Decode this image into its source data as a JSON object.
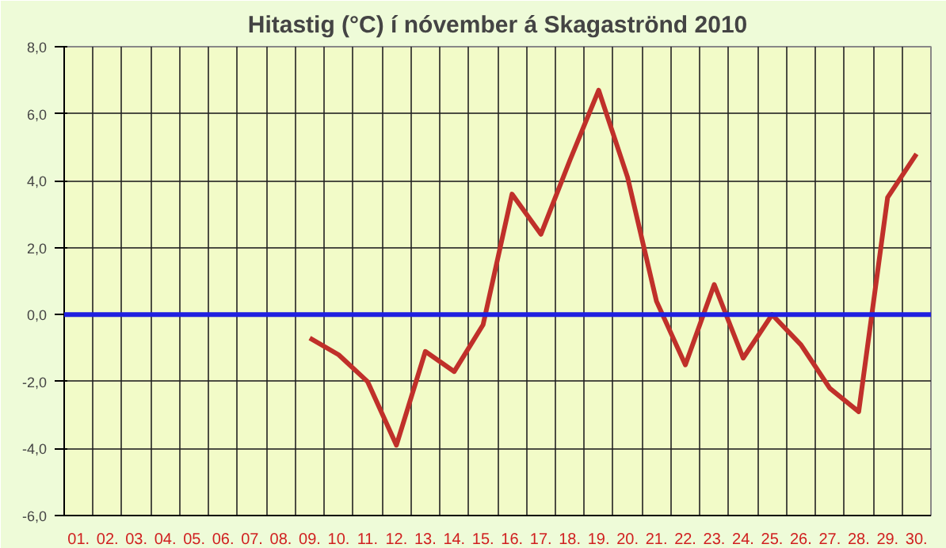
{
  "chart_data": {
    "type": "line",
    "title": "Hitastig (°C) í nóvember á Skagaströnd 2010",
    "categories": [
      "01.",
      "02.",
      "03.",
      "04.",
      "05.",
      "06.",
      "07.",
      "08.",
      "09.",
      "10.",
      "11.",
      "12.",
      "13.",
      "14.",
      "15.",
      "16.",
      "17.",
      "18.",
      "19.",
      "20.",
      "21.",
      "22.",
      "23.",
      "24.",
      "25.",
      "26.",
      "27.",
      "28.",
      "29.",
      "30."
    ],
    "series": [
      {
        "color": "#c0302a",
        "values": [
          null,
          null,
          null,
          null,
          null,
          null,
          null,
          null,
          -0.7,
          -1.2,
          -2.0,
          -3.9,
          -1.1,
          -1.7,
          -0.3,
          3.6,
          2.4,
          4.6,
          6.7,
          4.1,
          0.4,
          -1.5,
          0.9,
          -1.3,
          0.0,
          -0.9,
          -2.2,
          -2.9,
          3.5,
          4.8
        ]
      }
    ],
    "ylim": [
      -6,
      8
    ],
    "yticks": [
      {
        "value": -6,
        "label": "-6,0"
      },
      {
        "value": -4,
        "label": "-4,0"
      },
      {
        "value": -2,
        "label": "-2,0"
      },
      {
        "value": 0,
        "label": "0,0"
      },
      {
        "value": 2,
        "label": "2,0"
      },
      {
        "value": 4,
        "label": "4,0"
      },
      {
        "value": 6,
        "label": "6,0"
      },
      {
        "value": 8,
        "label": "8,0"
      }
    ],
    "ref_lines": [
      {
        "axis": "y",
        "value": 0,
        "color": "#2020e0"
      }
    ],
    "grid": true,
    "marker": "none",
    "line_style": "solid"
  }
}
